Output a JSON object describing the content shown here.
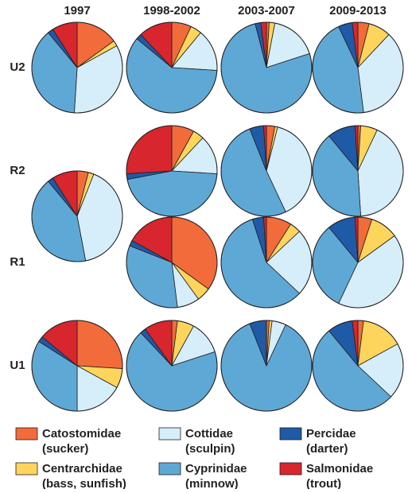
{
  "columns": [
    "1997",
    "1998-2002",
    "2003-2007",
    "2009-2013"
  ],
  "rows": [
    "U2",
    "R2",
    "R1",
    "U1"
  ],
  "legend": {
    "items": [
      {
        "name": "Catostomidae",
        "note": "(sucker)",
        "color": "#f26b3a"
      },
      {
        "name": "Centrarchidae",
        "note": "(bass, sunfish)",
        "color": "#fdd55c"
      },
      {
        "name": "Cottidae",
        "note": "(sculpin)",
        "color": "#d5eefa"
      },
      {
        "name": "Cyprinidae",
        "note": "(minnow)",
        "color": "#5ea8d6"
      },
      {
        "name": "Percidae",
        "note": "(darter)",
        "color": "#1f5aa6"
      },
      {
        "name": "Salmonidae",
        "note": "(trout)",
        "color": "#d7262e"
      }
    ]
  },
  "chart_data": [
    {
      "type": "pie",
      "values": [
        15,
        2,
        34,
        38,
        2,
        9
      ]
    },
    {
      "type": "pie",
      "values": [
        7,
        4,
        15,
        60,
        2,
        12
      ]
    },
    {
      "type": "pie",
      "values": [
        1,
        2,
        17,
        76,
        2,
        2
      ]
    },
    {
      "type": "pie",
      "values": [
        4,
        8,
        36,
        45,
        5,
        2
      ]
    },
    {
      "type": "pie",
      "values": [
        8,
        4,
        14,
        46,
        2,
        26
      ]
    },
    {
      "type": "pie",
      "values": [
        3,
        1,
        39,
        51,
        5,
        1
      ]
    },
    {
      "type": "pie",
      "values": [
        1,
        6,
        42,
        40,
        10,
        1
      ]
    },
    {
      "type": "pie",
      "values": [
        4,
        2,
        41,
        42,
        2,
        9
      ]
    },
    {
      "type": "pie",
      "values": [
        35,
        5,
        8,
        33,
        2,
        17
      ]
    },
    {
      "type": "pie",
      "values": [
        9,
        4,
        24,
        58,
        4,
        1
      ]
    },
    {
      "type": "pie",
      "values": [
        5,
        10,
        42,
        32,
        10,
        1
      ]
    },
    {
      "type": "pie",
      "values": [
        26,
        7,
        17,
        34,
        2,
        14
      ]
    },
    {
      "type": "pie",
      "values": [
        2,
        6,
        12,
        68,
        2,
        10
      ]
    },
    {
      "type": "pie",
      "values": [
        1,
        1,
        5,
        87,
        6,
        0
      ]
    },
    {
      "type": "pie",
      "values": [
        2,
        15,
        20,
        52,
        9,
        2
      ]
    }
  ]
}
